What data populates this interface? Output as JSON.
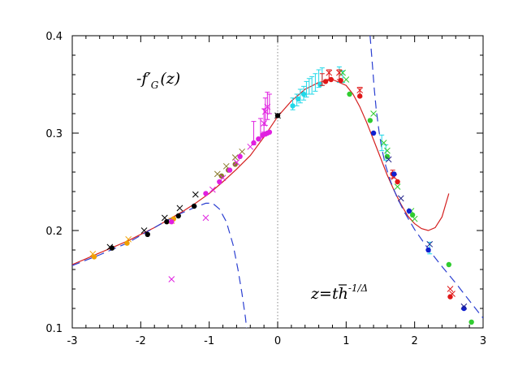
{
  "chart_data": {
    "type": "scatter",
    "xlim": [
      -3,
      3
    ],
    "ylim": [
      0.1,
      0.4
    ],
    "x_ticks": [
      -3,
      -2,
      -1,
      0,
      1,
      2,
      3
    ],
    "x_tick_labels": [
      "-3",
      "-2",
      "-1",
      "0",
      "1",
      "2",
      "3"
    ],
    "y_ticks": [
      0.1,
      0.2,
      0.3,
      0.4
    ],
    "y_tick_labels": [
      "0.1",
      "0.2",
      "0.3",
      "0.4"
    ],
    "grid": false,
    "annotations": {
      "function_label": {
        "main": "-f",
        "prime": "′",
        "sub": "G",
        "arg": "(z)"
      },
      "variable_label": {
        "main": "z=",
        "t": "t",
        "h": "h",
        "exp": "-1/Δ"
      }
    },
    "colors": {
      "fit_curve": "#d42020",
      "asymptote": "#2b3fd1",
      "zero_line": "#888888",
      "black": "#000000",
      "orange": "#f0a000",
      "olive": "#8a7a2a",
      "magenta": "#e020e0",
      "cyan": "#20d8e8",
      "red": "#e01818",
      "green": "#30cc30",
      "blue": "#1020d0",
      "navy": "#22228a"
    },
    "lines": [
      {
        "style": "solid",
        "color": "fit_curve",
        "x": [
          -3,
          -2.8,
          -2.6,
          -2.4,
          -2.2,
          -2.0,
          -1.8,
          -1.6,
          -1.4,
          -1.2,
          -1.0,
          -0.8,
          -0.6,
          -0.4,
          -0.2,
          0.0,
          0.2,
          0.4,
          0.6,
          0.8,
          1.0,
          1.1,
          1.2,
          1.3,
          1.4,
          1.5,
          1.6,
          1.7,
          1.8,
          1.9,
          2.0,
          2.1,
          2.2,
          2.3,
          2.4,
          2.5
        ],
        "y": [
          0.165,
          0.171,
          0.177,
          0.183,
          0.189,
          0.196,
          0.203,
          0.211,
          0.219,
          0.228,
          0.238,
          0.25,
          0.263,
          0.277,
          0.296,
          0.317,
          0.333,
          0.345,
          0.352,
          0.355,
          0.349,
          0.34,
          0.327,
          0.311,
          0.293,
          0.275,
          0.257,
          0.241,
          0.227,
          0.215,
          0.207,
          0.202,
          0.2,
          0.203,
          0.214,
          0.238
        ]
      },
      {
        "style": "dashed",
        "color": "asymptote",
        "x": [
          -3,
          -2.6,
          -2.2,
          -2.0,
          -1.8,
          -1.6,
          -1.4,
          -1.2,
          -1.05,
          -0.95,
          -0.85,
          -0.75,
          -0.65,
          -0.58,
          -0.52,
          -0.47,
          -0.44
        ],
        "y": [
          0.164,
          0.175,
          0.187,
          0.195,
          0.203,
          0.211,
          0.218,
          0.224,
          0.228,
          0.228,
          0.222,
          0.209,
          0.185,
          0.16,
          0.135,
          0.11,
          0.09
        ]
      },
      {
        "style": "dashed",
        "color": "asymptote",
        "x": [
          1.35,
          1.38,
          1.41,
          1.44,
          1.48,
          1.52,
          1.58,
          1.65,
          1.75,
          1.85,
          2.0,
          2.2,
          2.4,
          2.6,
          2.8,
          3.0
        ],
        "y": [
          0.4,
          0.373,
          0.346,
          0.324,
          0.302,
          0.284,
          0.266,
          0.25,
          0.233,
          0.219,
          0.201,
          0.181,
          0.163,
          0.146,
          0.128,
          0.11
        ]
      }
    ],
    "series": [
      {
        "marker": "dot",
        "color": "black",
        "points": [
          [
            -2.42,
            0.182
          ],
          [
            -1.9,
            0.196
          ],
          [
            -1.62,
            0.209
          ],
          [
            -1.45,
            0.215
          ],
          [
            -1.22,
            0.225
          ],
          [
            0.0,
            0.318
          ]
        ]
      },
      {
        "marker": "cross",
        "color": "black",
        "points": [
          [
            -2.45,
            0.183
          ],
          [
            -1.95,
            0.2
          ],
          [
            -1.65,
            0.213
          ],
          [
            -1.43,
            0.223
          ],
          [
            -1.2,
            0.237
          ],
          [
            0.0,
            0.318
          ]
        ]
      },
      {
        "marker": "dot",
        "color": "orange",
        "points": [
          [
            -2.68,
            0.173
          ],
          [
            -2.2,
            0.187
          ],
          [
            -1.52,
            0.212
          ]
        ]
      },
      {
        "marker": "cross",
        "color": "orange",
        "points": [
          [
            -2.7,
            0.176
          ],
          [
            -2.18,
            0.191
          ],
          [
            -1.55,
            0.21
          ]
        ]
      },
      {
        "marker": "dot",
        "color": "olive",
        "points": [
          [
            -0.82,
            0.256
          ],
          [
            -0.72,
            0.262
          ],
          [
            -0.62,
            0.268
          ]
        ]
      },
      {
        "marker": "cross",
        "color": "olive",
        "points": [
          [
            -0.88,
            0.258
          ],
          [
            -0.75,
            0.266
          ],
          [
            -0.62,
            0.275
          ],
          [
            -0.52,
            0.281
          ]
        ]
      },
      {
        "marker": "dot",
        "color": "magenta",
        "points": [
          [
            -1.55,
            0.209
          ],
          [
            -1.05,
            0.238
          ],
          [
            -0.85,
            0.25
          ],
          [
            -0.7,
            0.262
          ],
          [
            -0.55,
            0.276
          ],
          [
            -0.35,
            0.29
          ],
          [
            -0.28,
            0.294
          ],
          [
            -0.22,
            0.298
          ],
          [
            -0.18,
            0.299
          ],
          [
            -0.15,
            0.3
          ],
          [
            -0.12,
            0.301
          ]
        ]
      },
      {
        "marker": "cross",
        "color": "magenta",
        "points": [
          [
            -1.55,
            0.15
          ],
          [
            -1.05,
            0.213
          ],
          [
            -0.95,
            0.242
          ],
          [
            -0.8,
            0.254
          ],
          [
            -0.6,
            0.27
          ],
          [
            -0.4,
            0.286
          ],
          [
            -0.2,
            0.31
          ],
          [
            -0.18,
            0.322
          ],
          [
            -0.15,
            0.327
          ]
        ]
      },
      {
        "marker": "errorbar",
        "color": "magenta",
        "points": [
          [
            -0.35,
            0.3,
            0.012
          ],
          [
            -0.25,
            0.305,
            0.01
          ],
          [
            -0.2,
            0.313,
            0.012
          ],
          [
            -0.18,
            0.322,
            0.014
          ],
          [
            -0.15,
            0.328,
            0.014
          ],
          [
            -0.12,
            0.33,
            0.01
          ]
        ]
      },
      {
        "marker": "dot",
        "color": "cyan",
        "points": [
          [
            0.22,
            0.328
          ],
          [
            0.3,
            0.335
          ],
          [
            0.38,
            0.34
          ],
          [
            0.62,
            0.35
          ]
        ]
      },
      {
        "marker": "errorbar",
        "color": "cyan",
        "points": [
          [
            0.22,
            0.33,
            0.006
          ],
          [
            0.28,
            0.334,
            0.006
          ],
          [
            0.33,
            0.338,
            0.007
          ],
          [
            0.38,
            0.341,
            0.007
          ],
          [
            0.42,
            0.345,
            0.008
          ],
          [
            0.46,
            0.348,
            0.008
          ],
          [
            0.5,
            0.349,
            0.009
          ],
          [
            0.55,
            0.352,
            0.009
          ],
          [
            0.6,
            0.356,
            0.009
          ],
          [
            0.65,
            0.358,
            0.009
          ],
          [
            0.9,
            0.36,
            0.008
          ],
          [
            0.95,
            0.358,
            0.006
          ],
          [
            1.52,
            0.29,
            0.008
          ],
          [
            1.58,
            0.28,
            0.008
          ],
          [
            2.22,
            0.182,
            0.006
          ]
        ]
      },
      {
        "marker": "dot",
        "color": "red",
        "points": [
          [
            0.7,
            0.353
          ],
          [
            0.78,
            0.355
          ],
          [
            0.92,
            0.354
          ],
          [
            1.2,
            0.338
          ],
          [
            1.68,
            0.258
          ],
          [
            1.75,
            0.25
          ],
          [
            2.52,
            0.132
          ]
        ]
      },
      {
        "marker": "errorbar",
        "color": "red",
        "points": [
          [
            0.65,
            0.355,
            0.006
          ],
          [
            0.75,
            0.36,
            0.005
          ],
          [
            0.9,
            0.36,
            0.005
          ],
          [
            1.2,
            0.342,
            0.005
          ],
          [
            1.68,
            0.258,
            0.004
          ]
        ]
      },
      {
        "marker": "cross",
        "color": "red",
        "points": [
          [
            0.75,
            0.362
          ],
          [
            0.9,
            0.362
          ],
          [
            1.2,
            0.344
          ],
          [
            1.7,
            0.255
          ],
          [
            2.52,
            0.14
          ],
          [
            2.55,
            0.135
          ]
        ]
      },
      {
        "marker": "dot",
        "color": "green",
        "points": [
          [
            1.05,
            0.34
          ],
          [
            1.35,
            0.313
          ],
          [
            1.6,
            0.276
          ],
          [
            1.97,
            0.216
          ],
          [
            2.5,
            0.165
          ],
          [
            2.83,
            0.106
          ]
        ]
      },
      {
        "marker": "cross",
        "color": "green",
        "points": [
          [
            0.95,
            0.362
          ],
          [
            1.0,
            0.355
          ],
          [
            1.4,
            0.32
          ],
          [
            1.55,
            0.29
          ],
          [
            1.6,
            0.282
          ],
          [
            1.75,
            0.245
          ],
          [
            1.95,
            0.22
          ],
          [
            2.0,
            0.212
          ]
        ]
      },
      {
        "marker": "dot",
        "color": "blue",
        "points": [
          [
            1.4,
            0.3
          ],
          [
            1.7,
            0.258
          ],
          [
            1.92,
            0.22
          ],
          [
            2.2,
            0.18
          ],
          [
            2.72,
            0.12
          ]
        ]
      },
      {
        "marker": "cross",
        "color": "navy",
        "points": [
          [
            1.62,
            0.273
          ],
          [
            1.8,
            0.233
          ],
          [
            2.22,
            0.186
          ],
          [
            2.72,
            0.122
          ]
        ]
      }
    ]
  }
}
